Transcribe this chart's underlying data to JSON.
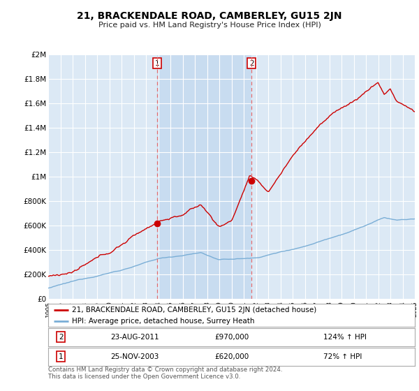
{
  "title": "21, BRACKENDALE ROAD, CAMBERLEY, GU15 2JN",
  "subtitle": "Price paid vs. HM Land Registry's House Price Index (HPI)",
  "background_color": "#ffffff",
  "plot_bg_color": "#dce9f5",
  "highlight_bg_color": "#c8dcf0",
  "ylim": [
    0,
    2000000
  ],
  "yticks": [
    0,
    200000,
    400000,
    600000,
    800000,
    1000000,
    1200000,
    1400000,
    1600000,
    1800000,
    2000000
  ],
  "ytick_labels": [
    "£0",
    "£200K",
    "£400K",
    "£600K",
    "£800K",
    "£1M",
    "£1.2M",
    "£1.4M",
    "£1.6M",
    "£1.8M",
    "£2M"
  ],
  "sale1_x": 2003.9,
  "sale1_y": 620000,
  "sale2_x": 2011.65,
  "sale2_y": 970000,
  "vline1_x": 2003.9,
  "vline2_x": 2011.65,
  "legend_line1_label": "21, BRACKENDALE ROAD, CAMBERLEY, GU15 2JN (detached house)",
  "legend_line2_label": "HPI: Average price, detached house, Surrey Heath",
  "table_row1": [
    "1",
    "25-NOV-2003",
    "£620,000",
    "72% ↑ HPI"
  ],
  "table_row2": [
    "2",
    "23-AUG-2011",
    "£970,000",
    "124% ↑ HPI"
  ],
  "footer": "Contains HM Land Registry data © Crown copyright and database right 2024.\nThis data is licensed under the Open Government Licence v3.0.",
  "red_line_color": "#cc0000",
  "blue_line_color": "#7aaed6",
  "vline_color": "#e87070",
  "marker_color": "#cc0000",
  "xmin": 1995,
  "xmax": 2025,
  "grid_color": "#ffffff",
  "title_fontsize": 10,
  "subtitle_fontsize": 8
}
